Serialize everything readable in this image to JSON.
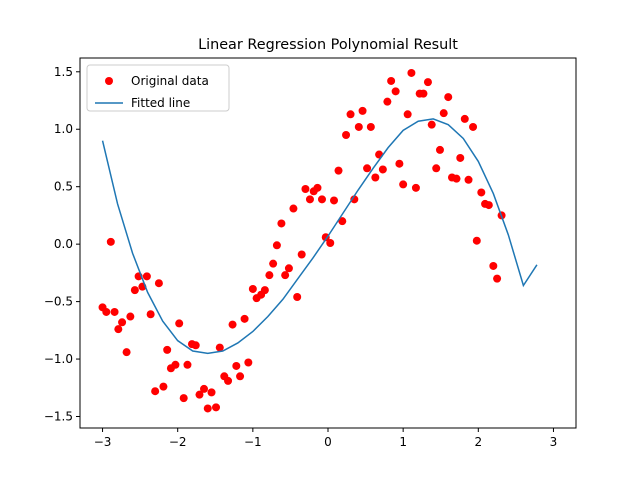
{
  "chart_data": {
    "type": "scatter",
    "title": "Linear Regression Polynomial Result",
    "xlabel": "",
    "ylabel": "",
    "xlim": [
      -3.3,
      3.3
    ],
    "ylim": [
      -1.6,
      1.62
    ],
    "xticks": [
      -3,
      -2,
      -1,
      0,
      1,
      2,
      3
    ],
    "xtick_labels": [
      "−3",
      "−2",
      "−1",
      "0",
      "1",
      "2",
      "3"
    ],
    "yticks": [
      -1.5,
      -1.0,
      -0.5,
      0.0,
      0.5,
      1.0,
      1.5
    ],
    "ytick_labels": [
      "−1.5",
      "−1.0",
      "−0.5",
      "0.0",
      "0.5",
      "1.0",
      "1.5"
    ],
    "grid": false,
    "legend_position": "top-left",
    "series": [
      {
        "name": "Original data",
        "kind": "scatter",
        "color": "#ff0000",
        "points": [
          [
            -3.0,
            -0.55
          ],
          [
            -2.95,
            -0.59
          ],
          [
            -2.89,
            0.02
          ],
          [
            -2.84,
            -0.59
          ],
          [
            -2.79,
            -0.74
          ],
          [
            -2.74,
            -0.68
          ],
          [
            -2.68,
            -0.94
          ],
          [
            -2.63,
            -0.63
          ],
          [
            -2.57,
            -0.4
          ],
          [
            -2.52,
            -0.28
          ],
          [
            -2.47,
            -0.37
          ],
          [
            -2.41,
            -0.28
          ],
          [
            -2.36,
            -0.61
          ],
          [
            -2.3,
            -1.28
          ],
          [
            -2.25,
            -0.34
          ],
          [
            -2.19,
            -1.24
          ],
          [
            -2.14,
            -0.92
          ],
          [
            -2.09,
            -1.08
          ],
          [
            -2.03,
            -1.05
          ],
          [
            -1.98,
            -0.69
          ],
          [
            -1.92,
            -1.34
          ],
          [
            -1.87,
            -1.05
          ],
          [
            -1.81,
            -0.87
          ],
          [
            -1.76,
            -0.88
          ],
          [
            -1.71,
            -1.31
          ],
          [
            -1.65,
            -1.26
          ],
          [
            -1.6,
            -1.43
          ],
          [
            -1.55,
            -1.29
          ],
          [
            -1.49,
            -1.42
          ],
          [
            -1.44,
            -0.9
          ],
          [
            -1.38,
            -1.15
          ],
          [
            -1.33,
            -1.19
          ],
          [
            -1.27,
            -0.7
          ],
          [
            -1.22,
            -1.06
          ],
          [
            -1.17,
            -1.15
          ],
          [
            -1.11,
            -0.65
          ],
          [
            -1.06,
            -1.03
          ],
          [
            -1.0,
            -0.39
          ],
          [
            -0.95,
            -0.47
          ],
          [
            -0.89,
            -0.44
          ],
          [
            -0.84,
            -0.4
          ],
          [
            -0.78,
            -0.27
          ],
          [
            -0.73,
            -0.17
          ],
          [
            -0.68,
            -0.01
          ],
          [
            -0.62,
            0.18
          ],
          [
            -0.57,
            -0.27
          ],
          [
            -0.52,
            -0.21
          ],
          [
            -0.46,
            0.31
          ],
          [
            -0.41,
            -0.46
          ],
          [
            -0.35,
            -0.09
          ],
          [
            -0.3,
            0.48
          ],
          [
            -0.24,
            0.39
          ],
          [
            -0.19,
            0.46
          ],
          [
            -0.14,
            0.49
          ],
          [
            -0.08,
            0.39
          ],
          [
            -0.03,
            0.06
          ],
          [
            0.03,
            0.01
          ],
          [
            0.08,
            0.38
          ],
          [
            0.14,
            0.64
          ],
          [
            0.19,
            0.2
          ],
          [
            0.24,
            0.95
          ],
          [
            0.3,
            1.13
          ],
          [
            0.35,
            0.39
          ],
          [
            0.41,
            1.02
          ],
          [
            0.46,
            1.16
          ],
          [
            0.52,
            0.66
          ],
          [
            0.57,
            1.02
          ],
          [
            0.63,
            0.58
          ],
          [
            0.68,
            0.78
          ],
          [
            0.73,
            0.65
          ],
          [
            0.79,
            1.24
          ],
          [
            0.84,
            1.42
          ],
          [
            0.9,
            1.33
          ],
          [
            0.95,
            0.7
          ],
          [
            1.0,
            0.52
          ],
          [
            1.06,
            1.13
          ],
          [
            1.11,
            1.49
          ],
          [
            1.17,
            0.49
          ],
          [
            1.22,
            1.31
          ],
          [
            1.27,
            1.31
          ],
          [
            1.33,
            1.41
          ],
          [
            1.38,
            1.04
          ],
          [
            1.44,
            0.66
          ],
          [
            1.49,
            0.82
          ],
          [
            1.54,
            1.14
          ],
          [
            1.6,
            1.28
          ],
          [
            1.65,
            0.58
          ],
          [
            1.71,
            0.57
          ],
          [
            1.76,
            0.75
          ],
          [
            1.82,
            1.09
          ],
          [
            1.87,
            0.56
          ],
          [
            1.93,
            1.02
          ],
          [
            1.98,
            0.03
          ],
          [
            2.04,
            0.45
          ],
          [
            2.09,
            0.35
          ],
          [
            2.14,
            0.34
          ],
          [
            2.2,
            -0.19
          ],
          [
            2.25,
            -0.3
          ],
          [
            2.31,
            0.25
          ]
        ]
      },
      {
        "name": "Fitted line",
        "kind": "line",
        "color": "#1f77b4",
        "points": [
          [
            -3.0,
            0.9
          ],
          [
            -2.8,
            0.35
          ],
          [
            -2.6,
            -0.08
          ],
          [
            -2.4,
            -0.42
          ],
          [
            -2.2,
            -0.67
          ],
          [
            -2.0,
            -0.84
          ],
          [
            -1.8,
            -0.93
          ],
          [
            -1.6,
            -0.95
          ],
          [
            -1.4,
            -0.93
          ],
          [
            -1.2,
            -0.86
          ],
          [
            -1.0,
            -0.76
          ],
          [
            -0.8,
            -0.63
          ],
          [
            -0.6,
            -0.48
          ],
          [
            -0.4,
            -0.3
          ],
          [
            -0.2,
            -0.12
          ],
          [
            0.0,
            0.07
          ],
          [
            0.2,
            0.27
          ],
          [
            0.4,
            0.47
          ],
          [
            0.6,
            0.66
          ],
          [
            0.8,
            0.84
          ],
          [
            1.0,
            0.99
          ],
          [
            1.2,
            1.07
          ],
          [
            1.4,
            1.09
          ],
          [
            1.6,
            1.04
          ],
          [
            1.8,
            0.92
          ],
          [
            2.0,
            0.72
          ],
          [
            2.2,
            0.44
          ],
          [
            2.4,
            0.08
          ],
          [
            2.6,
            -0.36
          ],
          [
            2.78,
            -0.18
          ]
        ]
      }
    ]
  }
}
